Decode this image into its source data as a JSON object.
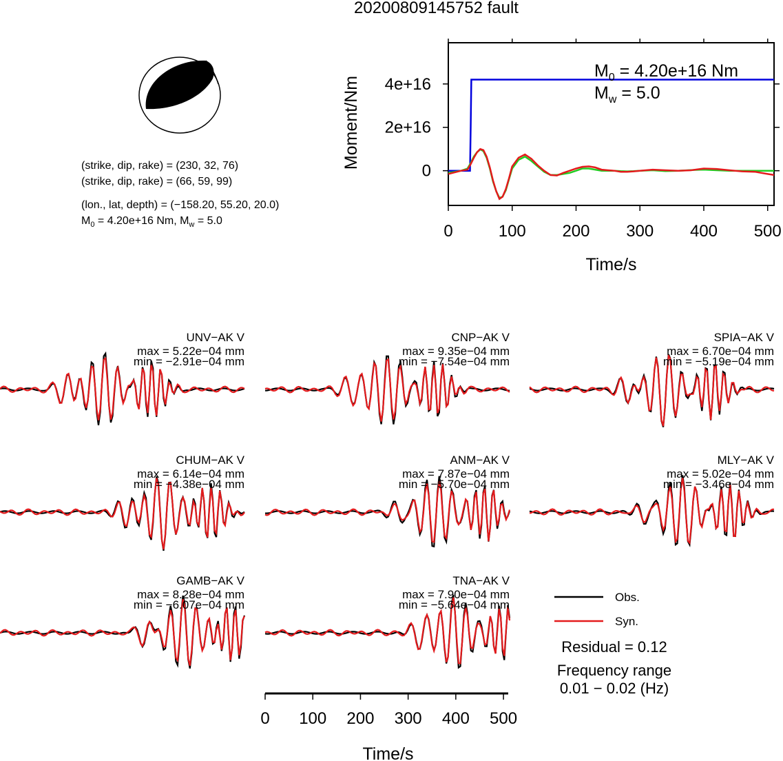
{
  "title": "20200809145752 fault",
  "solution": {
    "nodal_plane_1": "(strike, dip, rake) = (230, 32, 76)",
    "nodal_plane_2": "(strike, dip, rake) = (66, 59, 99)",
    "location": "(lon., lat, depth) = (−158.20, 55.20, 20.0)",
    "m0_prefix": "M",
    "m0_sub": "0",
    "m0_rest": " = 4.20e+16 Nm, M",
    "mw_sub": "w",
    "mw_rest": " = 5.0"
  },
  "colors": {
    "observed": "#000000",
    "synthetic": "#e41a1c",
    "moment_step": "#0000dd",
    "moment_green": "#22cc22",
    "beachball_fill": "#000000"
  },
  "chart_data": [
    {
      "type": "line",
      "name": "moment-function",
      "xlabel": "Time/s",
      "ylabel": "Moment/Nm",
      "xlim": [
        0,
        510
      ],
      "ylim": [
        -1.6e+16,
        5.9e+16
      ],
      "xticks": [
        "0",
        "100",
        "200",
        "300",
        "400",
        "500"
      ],
      "yticks": [
        "0",
        "2e+16",
        "4e+16"
      ],
      "annotation_m0": "M",
      "annotation_m0_sub": "0",
      "annotation_m0_rest": " = 4.20e+16 Nm",
      "annotation_mw": "M",
      "annotation_mw_sub": "w",
      "annotation_mw_rest": " = 5.0",
      "series": [
        {
          "color": "#0000dd",
          "x": [
            0,
            22,
            34,
            35,
            36,
            510
          ],
          "y": [
            0,
            0,
            0,
            2e+16,
            4.2e+16,
            4.2e+16
          ]
        },
        {
          "color": "#22cc22",
          "x": [
            0,
            20,
            30,
            35,
            40,
            45,
            50,
            55,
            60,
            65,
            70,
            75,
            80,
            85,
            90,
            95,
            100,
            110,
            120,
            130,
            140,
            150,
            160,
            170,
            180,
            190,
            200,
            210,
            220,
            230,
            240,
            250,
            260,
            270,
            280,
            290,
            300,
            320,
            340,
            360,
            380,
            400,
            420,
            440,
            460,
            480,
            500,
            510
          ],
          "y": [
            -1000000000000000.0,
            0,
            1000000000000000.0,
            3500000000000000.0,
            6500000000000000.0,
            8500000000000000.0,
            9800000000000000.0,
            9000000000000000.0,
            6000000000000000.0,
            1000000000000000.0,
            -5000000000000000.0,
            -9500000000000000.0,
            -1.25e+16,
            -1.2e+16,
            -9000000000000000.0,
            -4000000000000000.0,
            1000000000000000.0,
            5000000000000000.0,
            6500000000000000.0,
            4500000000000000.0,
            2000000000000000.0,
            -500000000000000.0,
            -2000000000000000.0,
            -2000000000000000.0,
            -1500000000000000.0,
            -1000000000000000.0,
            0,
            1000000000000000.0,
            1000000000000000.0,
            500000000000000.0,
            0,
            0,
            0,
            -200000000000000.0,
            -300000000000000.0,
            -200000000000000.0,
            0,
            200000000000000.0,
            -200000000000000.0,
            0,
            300000000000000.0,
            500000000000000.0,
            200000000000000.0,
            0,
            0,
            0,
            0,
            0
          ]
        },
        {
          "color": "#e41a1c",
          "x": [
            0,
            20,
            30,
            35,
            40,
            45,
            50,
            55,
            60,
            65,
            70,
            75,
            80,
            85,
            90,
            95,
            100,
            110,
            120,
            130,
            140,
            150,
            160,
            170,
            180,
            190,
            200,
            210,
            220,
            230,
            240,
            250,
            260,
            270,
            280,
            290,
            300,
            320,
            340,
            360,
            380,
            400,
            420,
            440,
            460,
            480,
            500,
            510
          ],
          "y": [
            -1500000000000000.0,
            0,
            500000000000000.0,
            3000000000000000.0,
            6000000000000000.0,
            8500000000000000.0,
            1e+16,
            9500000000000000.0,
            6500000000000000.0,
            1500000000000000.0,
            -4500000000000000.0,
            -9500000000000000.0,
            -1.3e+16,
            -1.2e+16,
            -8500000000000000.0,
            -3500000000000000.0,
            2000000000000000.0,
            6000000000000000.0,
            7500000000000000.0,
            5500000000000000.0,
            2500000000000000.0,
            0.0,
            -2000000000000000.0,
            -2200000000000000.0,
            -1000000000000000.0,
            0.0,
            1000000000000000.0,
            1800000000000000.0,
            2000000000000000.0,
            1500000000000000.0,
            500000000000000.0,
            200000000000000.0,
            0.0,
            -500000000000000.0,
            -500000000000000.0,
            -300000000000000.0,
            0.0,
            500000000000000.0,
            200000000000000.0,
            0.0,
            200000000000000.0,
            1000000000000000.0,
            800000000000000.0,
            200000000000000.0,
            -300000000000000.0,
            -500000000000000.0,
            -1500000000000000.0,
            -2000000000000000.0
          ]
        }
      ]
    },
    {
      "type": "line",
      "name": "waveforms",
      "xlabel": "Time/s",
      "xlim": [
        0,
        510
      ],
      "xticks": [
        "0",
        "100",
        "200",
        "300",
        "400",
        "500"
      ],
      "legend": {
        "observed": "Obs.",
        "synthetic": "Syn."
      },
      "residual": "Residual = 0.12",
      "frequency_label": "Frequency range",
      "frequency_value": "0.01 − 0.02 (Hz)",
      "stations": [
        {
          "station": "UNV−AK V",
          "max": "max = 5.22e−04 mm",
          "min": "min = −2.91e−04 mm",
          "max_value": 0.000522,
          "min_value": -0.000291
        },
        {
          "station": "CNP−AK V",
          "max": "max = 9.35e−04 mm",
          "min": "min = −7.54e−04 mm",
          "max_value": 0.000935,
          "min_value": -0.000754
        },
        {
          "station": "SPIA−AK V",
          "max": "max = 6.70e−04 mm",
          "min": "min = −5.19e−04 mm",
          "max_value": 0.00067,
          "min_value": -0.000519
        },
        {
          "station": "CHUM−AK V",
          "max": "max = 6.14e−04 mm",
          "min": "min = −4.38e−04 mm",
          "max_value": 0.000614,
          "min_value": -0.000438
        },
        {
          "station": "ANM−AK V",
          "max": "max = 7.87e−04 mm",
          "min": "min = −5.70e−04 mm",
          "max_value": 0.000787,
          "min_value": -0.00057
        },
        {
          "station": "MLY−AK V",
          "max": "max = 5.02e−04 mm",
          "min": "min = −3.46e−04 mm",
          "max_value": 0.000502,
          "min_value": -0.000346
        },
        {
          "station": "GAMB−AK V",
          "max": "max = 8.28e−04 mm",
          "min": "min = −6.07e−04 mm",
          "max_value": 0.000828,
          "min_value": -0.000607
        },
        {
          "station": "TNA−AK V",
          "max": "max = 7.90e−04 mm",
          "min": "min = −5.64e−04 mm",
          "max_value": 0.00079,
          "min_value": -0.000564
        }
      ]
    }
  ]
}
